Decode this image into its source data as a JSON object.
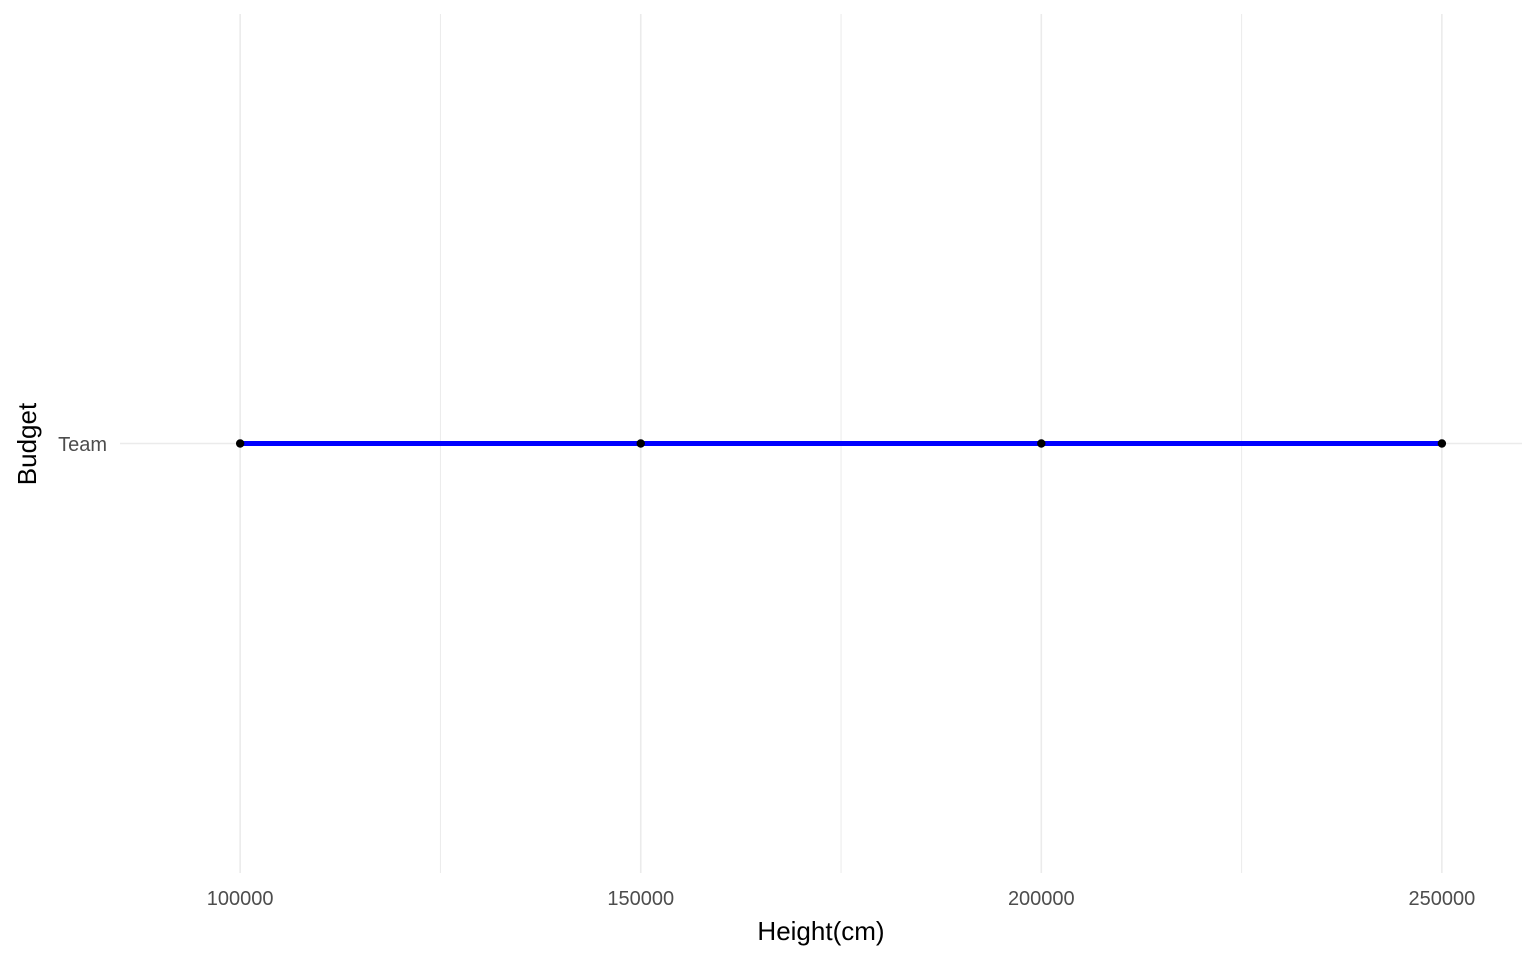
{
  "chart_data": {
    "type": "line",
    "xlabel": "Height(cm)",
    "ylabel": "Budget",
    "xlim": [
      85000,
      260000
    ],
    "x_ticks": [
      100000,
      150000,
      200000,
      250000
    ],
    "x_tick_labels": [
      "100000",
      "150000",
      "200000",
      "250000"
    ],
    "x_minor_ticks": [
      125000,
      175000,
      225000
    ],
    "categories": [
      "Team"
    ],
    "series": [
      {
        "category": "Team",
        "x": [
          100000,
          150000,
          200000,
          250000
        ],
        "line_color": "#0000ff",
        "point_color": "#000000"
      }
    ],
    "grid": true,
    "legend": "none",
    "grid_color": "#ebebeb"
  }
}
